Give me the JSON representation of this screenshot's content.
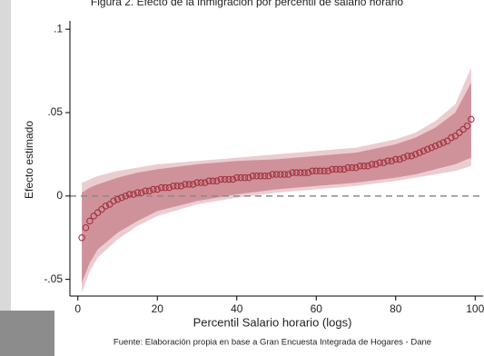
{
  "chart_data": {
    "type": "scatter",
    "title": "Figura 2. Efecto de la inmigración por percentil de salario horario",
    "xlabel": "Percentil Salario horario (logs)",
    "ylabel": "Efecto estimado",
    "source": "Fuente: Elaboración propia en base a Gran Encuesta Integrada de Hogares - Dane",
    "x": [
      1,
      2,
      3,
      4,
      5,
      6,
      7,
      8,
      9,
      10,
      11,
      12,
      13,
      14,
      15,
      16,
      17,
      18,
      19,
      20,
      21,
      22,
      23,
      24,
      25,
      26,
      27,
      28,
      29,
      30,
      31,
      32,
      33,
      34,
      35,
      36,
      37,
      38,
      39,
      40,
      41,
      42,
      43,
      44,
      45,
      46,
      47,
      48,
      49,
      50,
      51,
      52,
      53,
      54,
      55,
      56,
      57,
      58,
      59,
      60,
      61,
      62,
      63,
      64,
      65,
      66,
      67,
      68,
      69,
      70,
      71,
      72,
      73,
      74,
      75,
      76,
      77,
      78,
      79,
      80,
      81,
      82,
      83,
      84,
      85,
      86,
      87,
      88,
      89,
      90,
      91,
      92,
      93,
      94,
      95,
      96,
      97,
      98,
      99
    ],
    "values": [
      -0.025,
      -0.019,
      -0.015,
      -0.012,
      -0.01,
      -0.008,
      -0.006,
      -0.005,
      -0.003,
      -0.002,
      -0.001,
      0.0,
      0.001,
      0.001,
      0.002,
      0.002,
      0.003,
      0.003,
      0.004,
      0.004,
      0.005,
      0.005,
      0.005,
      0.006,
      0.006,
      0.006,
      0.007,
      0.007,
      0.007,
      0.008,
      0.008,
      0.008,
      0.009,
      0.009,
      0.009,
      0.01,
      0.01,
      0.01,
      0.01,
      0.011,
      0.011,
      0.011,
      0.011,
      0.012,
      0.012,
      0.012,
      0.012,
      0.012,
      0.013,
      0.013,
      0.013,
      0.013,
      0.013,
      0.014,
      0.014,
      0.014,
      0.014,
      0.014,
      0.015,
      0.015,
      0.015,
      0.015,
      0.015,
      0.016,
      0.016,
      0.016,
      0.016,
      0.017,
      0.017,
      0.017,
      0.018,
      0.018,
      0.018,
      0.019,
      0.019,
      0.02,
      0.02,
      0.021,
      0.021,
      0.022,
      0.022,
      0.023,
      0.024,
      0.024,
      0.025,
      0.026,
      0.027,
      0.028,
      0.029,
      0.03,
      0.031,
      0.032,
      0.033,
      0.035,
      0.036,
      0.038,
      0.04,
      0.042,
      0.046
    ],
    "marker_color": "#a3323f",
    "band_x": [
      1,
      3,
      5,
      10,
      15,
      20,
      30,
      40,
      50,
      60,
      70,
      80,
      85,
      90,
      95,
      99
    ],
    "bands": [
      {
        "color": "#ebcdd1",
        "lower": [
          -0.058,
          -0.045,
          -0.037,
          -0.026,
          -0.018,
          -0.012,
          -0.005,
          -0.001,
          0.002,
          0.004,
          0.006,
          0.009,
          0.011,
          0.013,
          0.015,
          0.018
        ],
        "upper": [
          0.008,
          0.01,
          0.012,
          0.015,
          0.017,
          0.019,
          0.021,
          0.023,
          0.025,
          0.027,
          0.029,
          0.034,
          0.038,
          0.045,
          0.055,
          0.077
        ]
      },
      {
        "color": "#cf929a",
        "lower": [
          -0.052,
          -0.04,
          -0.032,
          -0.022,
          -0.015,
          -0.009,
          -0.003,
          0.001,
          0.004,
          0.006,
          0.008,
          0.011,
          0.013,
          0.016,
          0.019,
          0.023
        ],
        "upper": [
          0.002,
          0.005,
          0.007,
          0.011,
          0.014,
          0.016,
          0.019,
          0.021,
          0.022,
          0.024,
          0.026,
          0.031,
          0.035,
          0.041,
          0.05,
          0.068
        ]
      }
    ],
    "hline": 0,
    "hline_color": "#8a8a8a",
    "xlim": [
      -2,
      102
    ],
    "ylim": [
      -0.06,
      0.105
    ],
    "xticks": [
      0,
      20,
      40,
      60,
      80,
      100
    ],
    "yticks": [
      {
        "value": -0.05,
        "label": "-.05"
      },
      0,
      {
        "value": 0.05,
        "label": ".05"
      },
      {
        "value": 0.1,
        "label": ".1"
      }
    ]
  }
}
